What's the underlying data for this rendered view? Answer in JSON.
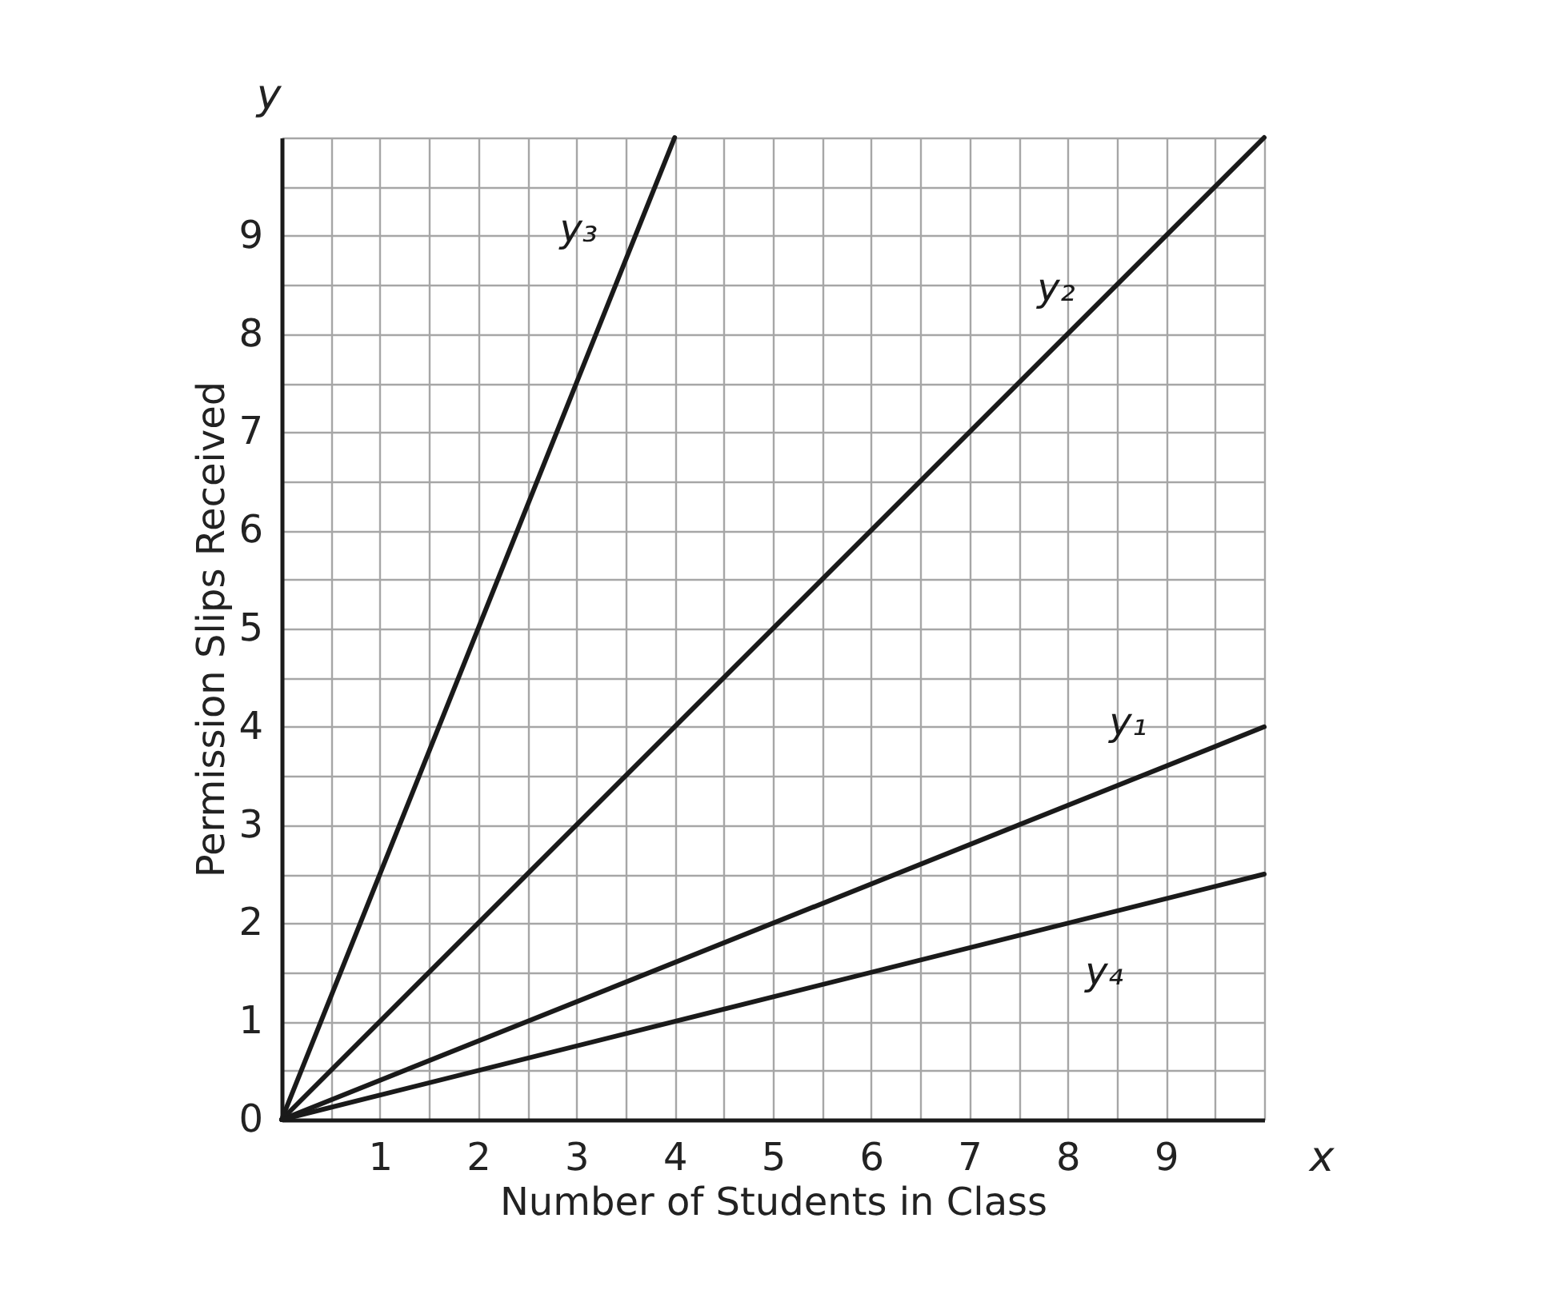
{
  "chart_data": {
    "type": "line",
    "xlabel": "Number of Students in Class",
    "ylabel": "Permission Slips Received",
    "annotations": [
      "x",
      "y"
    ],
    "series": [
      {
        "name": "y₁",
        "color": "#1a1a1a",
        "x": [
          0,
          10
        ],
        "values": [
          0,
          4
        ]
      },
      {
        "name": "y₂",
        "color": "#1a1a1a",
        "x": [
          0,
          10
        ],
        "values": [
          0,
          10
        ]
      },
      {
        "name": "y₃",
        "color": "#1a1a1a",
        "x": [
          0,
          4
        ],
        "values": [
          0,
          10
        ]
      },
      {
        "name": "y₄",
        "color": "#1a1a1a",
        "x": [
          0,
          10
        ],
        "values": [
          0,
          2.5
        ]
      }
    ],
    "xlim": [
      0,
      10
    ],
    "ylim": [
      0,
      10
    ],
    "xticks": [
      {
        "value": 0.5,
        "label": null
      },
      1,
      {
        "value": 1.5,
        "label": null
      },
      2,
      {
        "value": 2.5,
        "label": null
      },
      3,
      {
        "value": 3.5,
        "label": null
      },
      4,
      {
        "value": 4.5,
        "label": null
      },
      5,
      {
        "value": 5.5,
        "label": null
      },
      6,
      {
        "value": 6.5,
        "label": null
      },
      7,
      {
        "value": 7.5,
        "label": null
      },
      8,
      {
        "value": 8.5,
        "label": null
      },
      9,
      {
        "value": 9.5,
        "label": null
      },
      {
        "value": 10,
        "label": null
      }
    ],
    "yticks": [
      0,
      {
        "value": 0.5,
        "label": null
      },
      1,
      {
        "value": 1.5,
        "label": null
      },
      2,
      {
        "value": 2.5,
        "label": null
      },
      3,
      {
        "value": 3.5,
        "label": null
      },
      4,
      {
        "value": 4.5,
        "label": null
      },
      5,
      {
        "value": 5.5,
        "label": null
      },
      6,
      {
        "value": 6.5,
        "label": null
      },
      7,
      {
        "value": 7.5,
        "label": null
      },
      8,
      {
        "value": 8.5,
        "label": null
      },
      9,
      {
        "value": 9.5,
        "label": null
      },
      {
        "value": 10,
        "label": null
      }
    ],
    "grid": true,
    "legend": false,
    "line_style": "solid",
    "marker": "none"
  }
}
